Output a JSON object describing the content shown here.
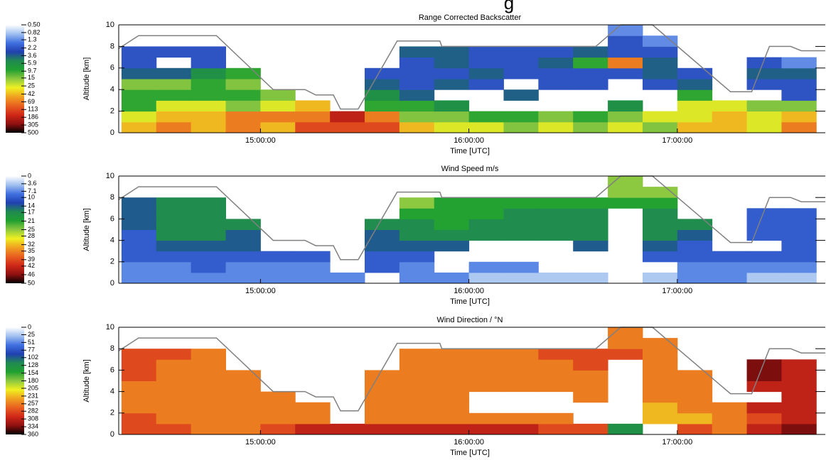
{
  "page_title_fragment": "g",
  "chart_data": [
    {
      "type": "heatmap",
      "title": "Range Corrected Backscatter",
      "xlabel": "Time [UTC]",
      "ylabel": "Altitude [km]",
      "xlim": [
        14.32,
        17.71
      ],
      "xticks": [
        {
          "value": 15,
          "label": "15:00:00"
        },
        {
          "value": 16,
          "label": "16:00:00"
        },
        {
          "value": 17,
          "label": "17:00:00"
        }
      ],
      "ylim": [
        0,
        10
      ],
      "yticks": [
        0,
        2,
        4,
        6,
        8,
        10
      ],
      "colorscale": "log",
      "clim": [
        0.5,
        500
      ],
      "cticks": [
        {
          "value": 0.5,
          "label": "0.50"
        },
        0.82,
        1.3,
        2.2,
        3.6,
        5.9,
        9.7,
        15,
        25,
        42,
        69,
        113,
        186,
        305,
        500
      ],
      "colormap": [
        "#ffffff",
        "#a0c0f0",
        "#4070e0",
        "#2040b0",
        "#208a50",
        "#20a030",
        "#8cc840",
        "#f0f020",
        "#f0a020",
        "#e86020",
        "#d02818",
        "#901010",
        "#000000"
      ],
      "x": [
        14.4167,
        14.5833,
        14.75,
        14.9167,
        15.0833,
        15.25,
        15.4167,
        15.5833,
        15.75,
        15.9167,
        16.0833,
        16.25,
        16.4167,
        16.5833,
        16.75,
        16.9167,
        17.0833,
        17.25,
        17.4167,
        17.5833
      ],
      "y": [
        0.5,
        1.5,
        2.5,
        3.5,
        4.5,
        5.5,
        6.5,
        7.5,
        8.5,
        9.5
      ],
      "z": [
        [
          42,
          69,
          42,
          69,
          42,
          113,
          113,
          113,
          42,
          25,
          25,
          15,
          25,
          15,
          25,
          15,
          42,
          42,
          25,
          69
        ],
        [
          25,
          42,
          42,
          69,
          69,
          69,
          186,
          69,
          15,
          15,
          9.7,
          9.7,
          15,
          9.7,
          15,
          25,
          25,
          42,
          25,
          42
        ],
        [
          9.7,
          25,
          25,
          15,
          25,
          42,
          null,
          9.7,
          9.7,
          5.9,
          null,
          null,
          null,
          null,
          5.9,
          null,
          25,
          25,
          15,
          15
        ],
        [
          9.7,
          9.7,
          9.7,
          9.7,
          15,
          null,
          null,
          5.9,
          3.6,
          null,
          null,
          3.6,
          null,
          null,
          null,
          null,
          9.7,
          null,
          null,
          2.2
        ],
        [
          15,
          15,
          9.7,
          15,
          null,
          null,
          null,
          3.6,
          2.2,
          3.6,
          2.2,
          null,
          2.2,
          2.2,
          null,
          2.2,
          3.6,
          null,
          2.2,
          2.2
        ],
        [
          3.6,
          3.6,
          5.9,
          9.7,
          null,
          null,
          null,
          2.2,
          2.2,
          2.2,
          3.6,
          2.2,
          2.2,
          2.2,
          2.2,
          3.6,
          2.2,
          null,
          3.6,
          3.6
        ],
        [
          2.2,
          null,
          2.2,
          null,
          null,
          null,
          null,
          null,
          2.2,
          3.6,
          2.2,
          2.2,
          3.6,
          9.7,
          69,
          3.6,
          null,
          null,
          2.2,
          1.3
        ],
        [
          2.2,
          2.2,
          2.2,
          null,
          null,
          null,
          null,
          null,
          3.6,
          3.6,
          2.2,
          2.2,
          2.2,
          3.6,
          2.2,
          2.2,
          null,
          null,
          null,
          null
        ],
        [
          null,
          null,
          null,
          null,
          null,
          null,
          null,
          null,
          null,
          null,
          null,
          null,
          null,
          null,
          2.2,
          1.3,
          null,
          null,
          null,
          null
        ],
        [
          null,
          null,
          null,
          null,
          null,
          null,
          null,
          null,
          null,
          null,
          null,
          null,
          null,
          null,
          1.3,
          null,
          null,
          null,
          null,
          null
        ]
      ],
      "line": {
        "color": "#808080",
        "x": [
          14.32,
          14.415,
          14.789,
          15.061,
          15.214,
          15.265,
          15.35,
          15.384,
          15.469,
          15.656,
          15.861,
          15.87,
          16.609,
          16.728,
          16.881,
          17.255,
          17.357,
          17.442,
          17.544,
          17.595,
          17.71
        ],
        "y": [
          7.8,
          9,
          9,
          4,
          4,
          3.5,
          3.5,
          2.2,
          2.2,
          8.5,
          8.5,
          8,
          8,
          10,
          10,
          3.8,
          3.8,
          8,
          8,
          7.6,
          7.6
        ]
      }
    },
    {
      "type": "heatmap",
      "title": "Wind Speed  m/s",
      "xlabel": "Time [UTC]",
      "ylabel": "Altitude [km]",
      "xlim": [
        14.32,
        17.71
      ],
      "xticks": [
        {
          "value": 15,
          "label": "15:00:00"
        },
        {
          "value": 16,
          "label": "16:00:00"
        },
        {
          "value": 17,
          "label": "17:00:00"
        }
      ],
      "ylim": [
        0,
        10
      ],
      "yticks": [
        0,
        2,
        4,
        6,
        8,
        10
      ],
      "colorscale": "linear",
      "clim": [
        0,
        50
      ],
      "cticks": [
        0,
        3.6,
        7.1,
        10,
        14,
        17,
        21,
        25,
        28,
        32,
        35,
        39,
        42,
        46,
        50
      ],
      "colormap": [
        "#ffffff",
        "#a0c0f0",
        "#4070e0",
        "#2040b0",
        "#208a50",
        "#20a030",
        "#8cc840",
        "#f0f020",
        "#f0a020",
        "#e86020",
        "#d02818",
        "#901010",
        "#000000"
      ],
      "x": [
        14.4167,
        14.5833,
        14.75,
        14.9167,
        15.0833,
        15.25,
        15.4167,
        15.5833,
        15.75,
        15.9167,
        16.0833,
        16.25,
        16.4167,
        16.5833,
        16.75,
        16.9167,
        17.0833,
        17.25,
        17.4167,
        17.5833
      ],
      "y": [
        0.5,
        1.5,
        2.5,
        3.5,
        4.5,
        5.5,
        6.5,
        7.5,
        8.5,
        9.5
      ],
      "z": [
        [
          7.1,
          7.1,
          7.1,
          7.1,
          7.1,
          7.1,
          7.1,
          null,
          7.1,
          7.1,
          3.6,
          3.6,
          3.6,
          3.6,
          null,
          3.6,
          7.1,
          7.1,
          3.6,
          3.6
        ],
        [
          7.1,
          7.1,
          10,
          7.1,
          7.1,
          7.1,
          null,
          10,
          7.1,
          null,
          7.1,
          7.1,
          null,
          null,
          null,
          null,
          7.1,
          7.1,
          7.1,
          7.1
        ],
        [
          10,
          10,
          10,
          10,
          10,
          10,
          null,
          10,
          10,
          null,
          null,
          null,
          null,
          null,
          null,
          10,
          10,
          10,
          10,
          10
        ],
        [
          10,
          14,
          14,
          14,
          null,
          null,
          null,
          14,
          14,
          14,
          null,
          null,
          null,
          14,
          null,
          14,
          10,
          null,
          null,
          10
        ],
        [
          10,
          17,
          17,
          14,
          null,
          null,
          null,
          14,
          17,
          17,
          17,
          17,
          17,
          17,
          null,
          17,
          14,
          null,
          10,
          10
        ],
        [
          14,
          17,
          17,
          17,
          null,
          null,
          null,
          17,
          17,
          21,
          17,
          17,
          17,
          17,
          null,
          17,
          17,
          null,
          10,
          10
        ],
        [
          14,
          17,
          17,
          null,
          null,
          null,
          null,
          null,
          21,
          21,
          21,
          17,
          17,
          17,
          null,
          17,
          null,
          null,
          10,
          10
        ],
        [
          14,
          17,
          17,
          null,
          null,
          null,
          null,
          null,
          25,
          21,
          21,
          21,
          21,
          21,
          21,
          21,
          null,
          null,
          null,
          null
        ],
        [
          null,
          null,
          null,
          null,
          null,
          null,
          null,
          null,
          null,
          null,
          null,
          null,
          null,
          null,
          25,
          25,
          null,
          null,
          null,
          null
        ],
        [
          null,
          null,
          null,
          null,
          null,
          null,
          null,
          null,
          null,
          null,
          null,
          null,
          null,
          null,
          25,
          null,
          null,
          null,
          null,
          null
        ]
      ],
      "line": {
        "color": "#808080",
        "x": [
          14.32,
          14.415,
          14.789,
          15.061,
          15.214,
          15.265,
          15.35,
          15.384,
          15.469,
          15.656,
          15.861,
          15.87,
          16.609,
          16.728,
          16.881,
          17.255,
          17.357,
          17.442,
          17.544,
          17.595,
          17.71
        ],
        "y": [
          7.8,
          9,
          9,
          4,
          4,
          3.5,
          3.5,
          2.2,
          2.2,
          8.5,
          8.5,
          8,
          8,
          10,
          10,
          3.8,
          3.8,
          8,
          8,
          7.6,
          7.6
        ]
      }
    },
    {
      "type": "heatmap",
      "title": "Wind Direction / °N",
      "xlabel": "Time [UTC]",
      "ylabel": "Altitude [km]",
      "xlim": [
        14.32,
        17.71
      ],
      "xticks": [
        {
          "value": 15,
          "label": "15:00:00"
        },
        {
          "value": 16,
          "label": "16:00:00"
        },
        {
          "value": 17,
          "label": "17:00:00"
        }
      ],
      "ylim": [
        0,
        10
      ],
      "yticks": [
        0,
        2,
        4,
        6,
        8,
        10
      ],
      "colorscale": "linear",
      "clim": [
        0,
        360
      ],
      "cticks": [
        0,
        25,
        51,
        77,
        102,
        128,
        154,
        180,
        205,
        231,
        257,
        282,
        308,
        334,
        360
      ],
      "colormap": [
        "#ffffff",
        "#a0c0f0",
        "#4070e0",
        "#2040b0",
        "#208a50",
        "#20a030",
        "#8cc840",
        "#f0f020",
        "#f0a020",
        "#e86020",
        "#d02818",
        "#901010",
        "#000000"
      ],
      "x": [
        14.4167,
        14.5833,
        14.75,
        14.9167,
        15.0833,
        15.25,
        15.4167,
        15.5833,
        15.75,
        15.9167,
        16.0833,
        16.25,
        16.4167,
        16.5833,
        16.75,
        16.9167,
        17.0833,
        17.25,
        17.4167,
        17.5833
      ],
      "y": [
        0.5,
        1.5,
        2.5,
        3.5,
        4.5,
        5.5,
        6.5,
        7.5,
        8.5,
        9.5
      ],
      "z": [
        [
          282,
          282,
          257,
          257,
          282,
          308,
          308,
          308,
          308,
          308,
          308,
          308,
          282,
          282,
          128,
          null,
          282,
          257,
          308,
          334
        ],
        [
          282,
          257,
          257,
          257,
          257,
          257,
          null,
          257,
          257,
          257,
          257,
          257,
          257,
          null,
          null,
          231,
          231,
          257,
          282,
          308
        ],
        [
          257,
          257,
          257,
          257,
          257,
          257,
          null,
          257,
          257,
          257,
          null,
          null,
          null,
          null,
          null,
          231,
          257,
          257,
          308,
          308
        ],
        [
          257,
          257,
          257,
          257,
          257,
          null,
          null,
          257,
          257,
          257,
          null,
          null,
          null,
          257,
          null,
          257,
          257,
          null,
          null,
          308
        ],
        [
          257,
          257,
          257,
          257,
          null,
          null,
          null,
          257,
          257,
          257,
          257,
          257,
          257,
          257,
          null,
          257,
          257,
          null,
          308,
          308
        ],
        [
          282,
          257,
          257,
          257,
          null,
          null,
          null,
          257,
          257,
          257,
          257,
          257,
          257,
          257,
          null,
          257,
          257,
          null,
          334,
          308
        ],
        [
          282,
          257,
          257,
          null,
          null,
          null,
          null,
          null,
          257,
          257,
          257,
          257,
          257,
          282,
          null,
          257,
          null,
          null,
          334,
          308
        ],
        [
          282,
          282,
          257,
          null,
          null,
          null,
          null,
          null,
          257,
          257,
          257,
          257,
          282,
          282,
          282,
          257,
          null,
          null,
          null,
          null
        ],
        [
          null,
          null,
          null,
          null,
          null,
          null,
          null,
          null,
          null,
          null,
          null,
          null,
          null,
          null,
          257,
          257,
          null,
          null,
          null,
          null
        ],
        [
          null,
          null,
          null,
          null,
          null,
          null,
          null,
          null,
          null,
          null,
          null,
          null,
          null,
          null,
          257,
          null,
          null,
          null,
          null,
          null
        ]
      ],
      "line": {
        "color": "#808080",
        "x": [
          14.32,
          14.415,
          14.789,
          15.061,
          15.214,
          15.265,
          15.35,
          15.384,
          15.469,
          15.656,
          15.861,
          15.87,
          16.609,
          16.728,
          16.881,
          17.255,
          17.357,
          17.442,
          17.544,
          17.595,
          17.71
        ],
        "y": [
          7.8,
          9,
          9,
          4,
          4,
          3.5,
          3.5,
          2.2,
          2.2,
          8.5,
          8.5,
          8,
          8,
          10,
          10,
          3.8,
          3.8,
          8,
          8,
          7.6,
          7.6
        ]
      }
    }
  ]
}
